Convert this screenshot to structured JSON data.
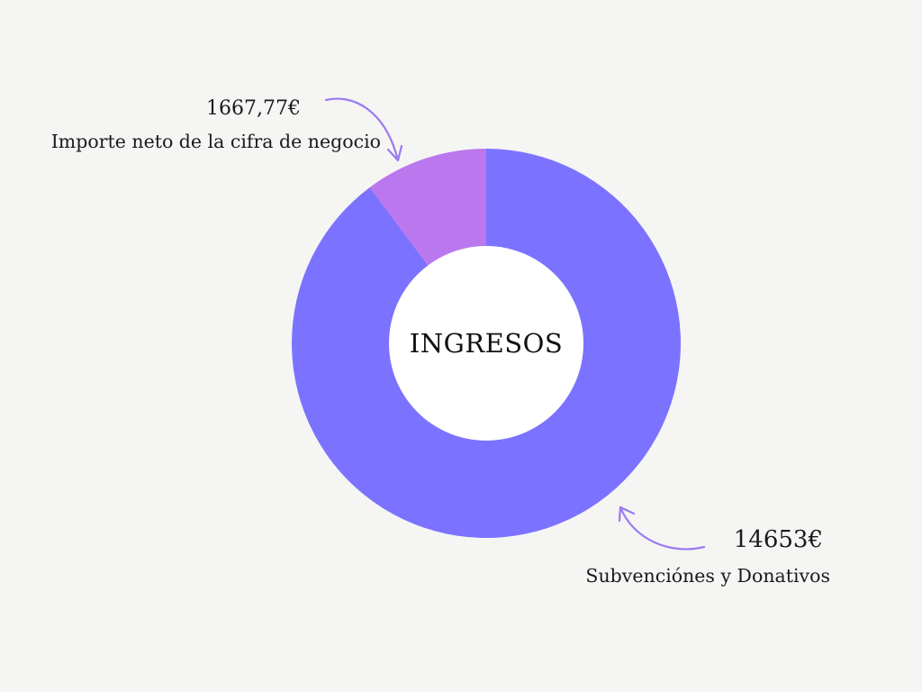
{
  "chart_data": {
    "type": "pie",
    "style": "donut",
    "center_label": "INGRESOS",
    "slices": [
      {
        "name": "Importe neto de la cifra de negocio",
        "value": 1667.77,
        "value_label": "1667,77€",
        "color": "#bb77ee"
      },
      {
        "name": "Subvenciónes y Donativos",
        "value": 14653,
        "value_label": "14653€",
        "color": "#7b73ff"
      }
    ],
    "arrow_color": "#9b7af0",
    "background": "#f5f5f4"
  }
}
